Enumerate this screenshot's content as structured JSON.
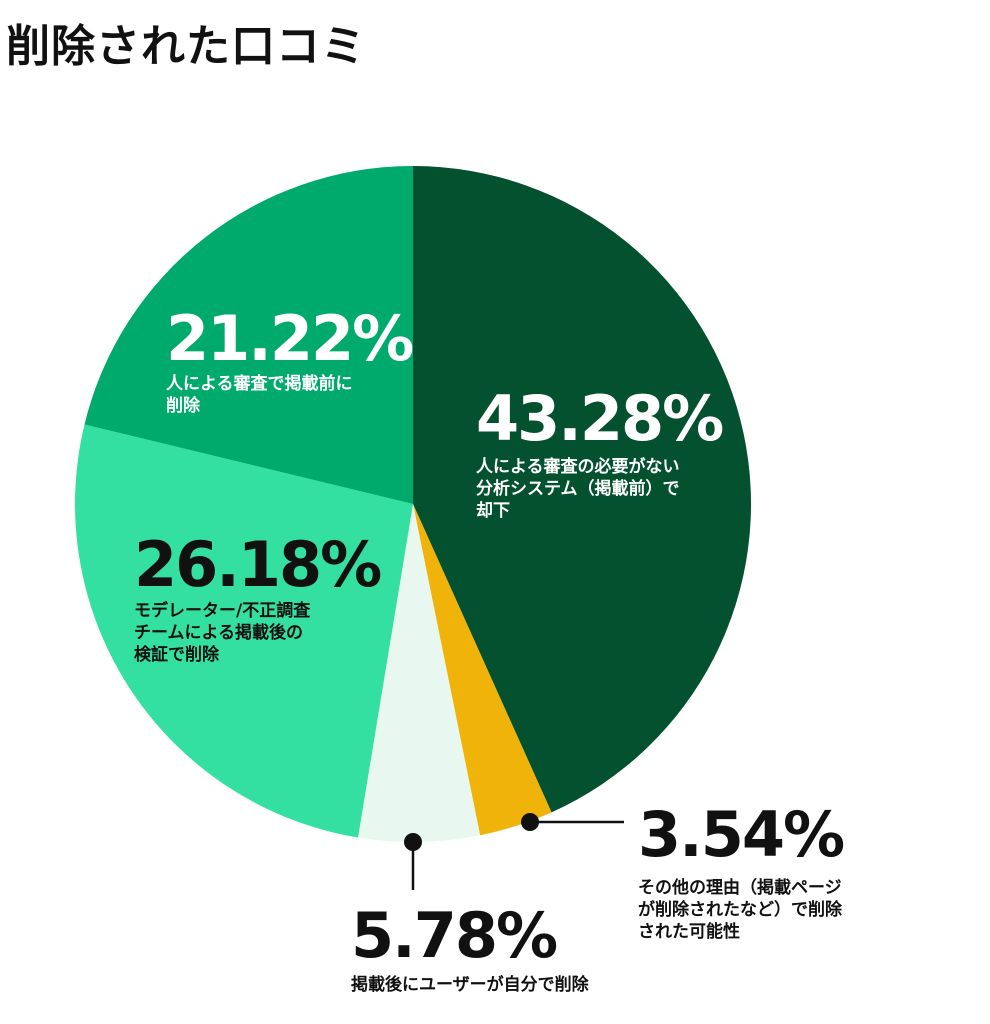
{
  "chart_data": {
    "type": "pie",
    "title": "削除された口コミ",
    "slices": [
      {
        "value": 43.28,
        "percent_label": "43.28%",
        "label_lines": [
          "人による審査の必要がない",
          "分析システム（掲載前）で",
          "却下"
        ],
        "color": "#03512f",
        "text_color": "#ffffff"
      },
      {
        "value": 3.54,
        "percent_label": "3.54%",
        "label_lines": [
          "その他の理由（掲載ページ",
          "が削除されたなど）で削除",
          "された可能性"
        ],
        "color": "#f0b30a",
        "text_color": "#111111"
      },
      {
        "value": 5.78,
        "percent_label": "5.78%",
        "label_lines": [
          "掲載後にユーザーが自分で削除"
        ],
        "color": "#e8f8f0",
        "text_color": "#111111"
      },
      {
        "value": 26.18,
        "percent_label": "26.18%",
        "label_lines": [
          "モデレーター/不正調査",
          "チームによる掲載後の",
          "検証で削除"
        ],
        "color": "#34e0a1",
        "text_color": "#111111"
      },
      {
        "value": 21.22,
        "percent_label": "21.22%",
        "label_lines": [
          "人による審査で掲載前に",
          "削除"
        ],
        "color": "#00aa6c",
        "text_color": "#ffffff"
      }
    ],
    "start": "top",
    "direction": "clockwise",
    "legend": "none"
  }
}
